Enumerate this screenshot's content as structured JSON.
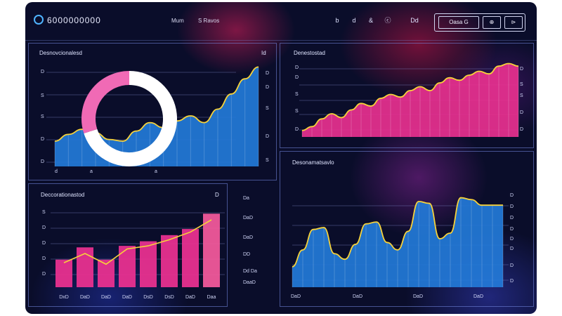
{
  "header": {
    "brand": "6000000000",
    "nav": [
      "Mum",
      "S Ravos"
    ],
    "icons": [
      "s-icon",
      "refresh-icon",
      "grid-icon",
      "settings-icon",
      "menu-icon"
    ],
    "icon_labels": [
      "b",
      "d",
      "&",
      "ⓒ",
      "Dd"
    ],
    "buttons": [
      "Oasa G",
      "⊕",
      "⊳"
    ]
  },
  "panels": {
    "top_left": {
      "title": "Desnovcionalesd",
      "corner_label": "Id",
      "y_ticks_left": [
        "D",
        "S",
        "S",
        "D",
        "D"
      ],
      "y_ticks_right": [
        "D",
        "D",
        "S",
        "D",
        "S"
      ],
      "x_ticks": [
        "d",
        "a",
        "a"
      ]
    },
    "top_right": {
      "title": "Denestostad",
      "y_ticks_left": [
        "D",
        "D",
        "S",
        "S",
        "D"
      ],
      "y_ticks_right": [
        "D",
        "S",
        "S",
        "D",
        "D"
      ]
    },
    "bottom_left": {
      "title": "Deccorationastod",
      "corner_label": "D",
      "y_ticks_left": [
        "S",
        "D",
        "D",
        "D",
        "D"
      ],
      "x_ticks": [
        "DxD",
        "DaD",
        "DaD",
        "DaD",
        "DsD",
        "DsD",
        "DaD",
        "Daa"
      ]
    },
    "mid_labels": [
      "Da",
      "DaD",
      "DaD",
      "DD",
      "Dd Da",
      "DaaD"
    ],
    "bottom_right": {
      "title": "Desonamatsavlo",
      "y_ticks_right": [
        "D",
        "D",
        "D",
        "D",
        "D",
        "D",
        "D",
        "D"
      ],
      "x_ticks": [
        "DaD",
        "DaD",
        "DaD",
        "DaD"
      ]
    }
  },
  "colors": {
    "pink": "#e8308f",
    "magenta": "#c21f77",
    "blue": "#2379d8",
    "yellow": "#f7d23a",
    "panel_border": "#6f85e8"
  },
  "chart_data": [
    {
      "type": "area",
      "x": [
        0,
        1,
        2,
        3,
        4,
        5,
        6,
        7,
        8,
        9,
        10,
        11,
        12,
        13,
        14,
        15
      ],
      "values": [
        1.5,
        1.9,
        2.2,
        2.0,
        1.6,
        1.5,
        2.1,
        2.6,
        2.3,
        2.7,
        3.0,
        2.6,
        3.4,
        4.3,
        5.2,
        5.9
      ],
      "ylim": [
        0,
        6
      ]
    },
    {
      "type": "pie",
      "slices": [
        70,
        30
      ],
      "slice_colors": [
        "#ffffff",
        "#f06ab5"
      ]
    },
    {
      "type": "area",
      "x": [
        0,
        1,
        2,
        3,
        4,
        5,
        6,
        7,
        8,
        9,
        10,
        11,
        12,
        13,
        14,
        15,
        16,
        17,
        18,
        19,
        20,
        21,
        22
      ],
      "values": [
        0.5,
        0.8,
        1.4,
        1.8,
        1.5,
        2.1,
        2.6,
        2.4,
        3.0,
        3.3,
        3.1,
        3.6,
        3.9,
        3.6,
        4.2,
        4.6,
        4.4,
        4.8,
        5.1,
        4.9,
        5.5,
        5.7,
        5.5
      ],
      "ylim": [
        0,
        6
      ]
    },
    {
      "type": "bar",
      "categories": [
        "DxD",
        "DaD",
        "DaD",
        "DaD",
        "DsD",
        "DsD",
        "DaD",
        "Daa"
      ],
      "values": [
        1.8,
        2.6,
        1.8,
        2.7,
        3.0,
        3.4,
        3.8,
        4.8
      ],
      "line": [
        1.6,
        2.2,
        1.5,
        2.5,
        2.7,
        3.1,
        3.6,
        4.4
      ],
      "ylim": [
        0,
        5.5
      ]
    },
    {
      "type": "area",
      "x": [
        0,
        1,
        2,
        3,
        4,
        5,
        6,
        7,
        8,
        9,
        10,
        11,
        12,
        13,
        14,
        15,
        16,
        17,
        18,
        19,
        20
      ],
      "values": [
        1.1,
        2.0,
        3.1,
        3.2,
        1.8,
        1.5,
        2.3,
        3.4,
        3.5,
        2.4,
        2.0,
        3.0,
        4.6,
        4.5,
        2.6,
        2.9,
        4.8,
        4.7,
        4.4,
        4.4,
        4.4
      ],
      "ylim": [
        0,
        5.5
      ]
    }
  ]
}
